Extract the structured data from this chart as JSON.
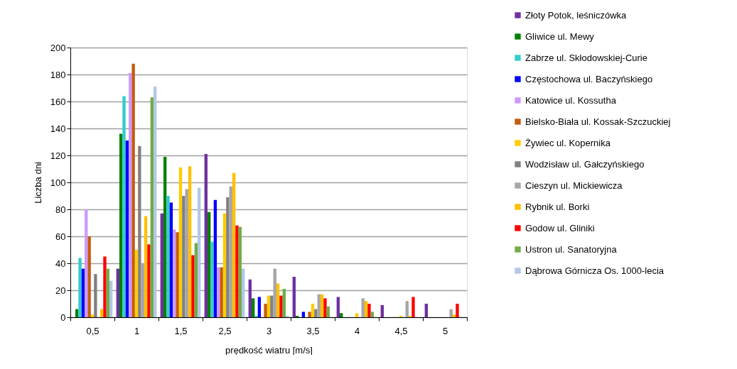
{
  "chart_data": {
    "type": "bar",
    "xlabel": "prędkość wiatru [m/s]",
    "ylabel": "Liczba dni",
    "categories": [
      "0,5",
      "1",
      "1,5",
      "2,5",
      "3",
      "3,5",
      "4",
      "4,5",
      "5"
    ],
    "ylim": [
      0,
      200
    ],
    "yticks": [
      0,
      20,
      40,
      60,
      80,
      100,
      120,
      140,
      160,
      180,
      200
    ],
    "grid": "y",
    "legend": "right",
    "series": [
      {
        "name": "Złoty Potok, leśniczówka",
        "color": "#7030a0",
        "values": [
          0,
          36,
          77,
          121,
          28,
          30,
          15,
          9,
          10
        ]
      },
      {
        "name": "Gliwice ul. Mewy",
        "color": "#008000",
        "values": [
          6,
          136,
          119,
          78,
          14,
          1,
          3,
          0,
          0
        ]
      },
      {
        "name": "Zabrze ul. Skłodowskiej-Curie",
        "color": "#33cccc",
        "values": [
          44,
          164,
          90,
          56,
          1,
          0,
          0,
          0,
          0
        ]
      },
      {
        "name": "Częstochowa ul. Baczyńskiego",
        "color": "#0000ff",
        "values": [
          36,
          131,
          85,
          87,
          15,
          4,
          0,
          0,
          0
        ]
      },
      {
        "name": "Katowice ul. Kossutha",
        "color": "#cc99ff",
        "values": [
          80,
          181,
          65,
          37,
          0,
          0,
          0,
          0,
          0
        ]
      },
      {
        "name": "Bielsko-Biała ul. Kossak-Szczuckiej",
        "color": "#c55a11",
        "values": [
          60,
          188,
          63,
          37,
          10,
          4,
          0,
          0,
          0
        ]
      },
      {
        "name": "Żywiec ul. Kopernika",
        "color": "#ffcc00",
        "values": [
          2,
          50,
          111,
          77,
          16,
          10,
          3,
          1,
          0
        ]
      },
      {
        "name": "Wodzisław ul. Gałczyńskiego",
        "color": "#808080",
        "values": [
          32,
          127,
          90,
          89,
          16,
          6,
          0,
          0,
          0
        ]
      },
      {
        "name": "Cieszyn ul. Mickiewicza",
        "color": "#a6a6a6",
        "values": [
          0,
          40,
          95,
          97,
          36,
          17,
          14,
          12,
          6
        ]
      },
      {
        "name": "Rybnik ul. Borki",
        "color": "#ffc000",
        "values": [
          6,
          75,
          112,
          107,
          25,
          17,
          12,
          1,
          2
        ]
      },
      {
        "name": "Godow ul. Gliniki",
        "color": "#ff0000",
        "values": [
          45,
          54,
          46,
          68,
          16,
          14,
          10,
          15,
          10
        ]
      },
      {
        "name": "Ustron ul. Sanatoryjna",
        "color": "#70ad47",
        "values": [
          36,
          163,
          55,
          67,
          21,
          8,
          4,
          0,
          0
        ]
      },
      {
        "name": "Dąbrowa Górnicza Os. 1000-lecia",
        "color": "#b4c7e7",
        "values": [
          27,
          171,
          96,
          36,
          1,
          0,
          0,
          0,
          0
        ]
      }
    ]
  }
}
